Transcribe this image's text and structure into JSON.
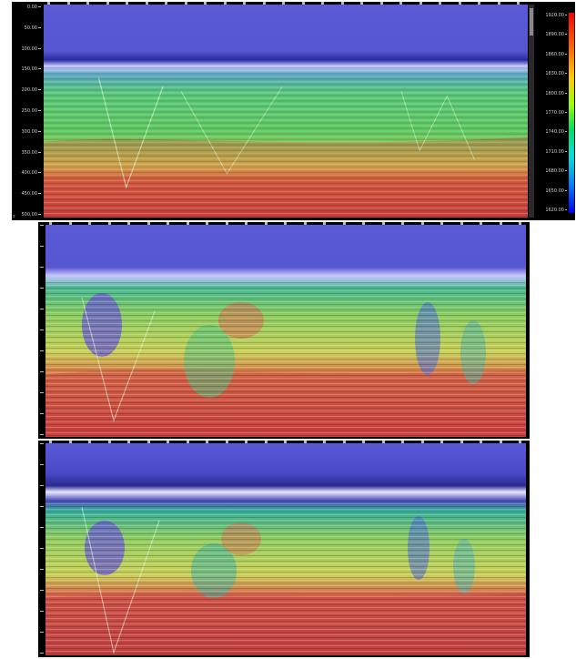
{
  "panels": [
    {
      "id": "top",
      "depth_ticks": [
        "0.00",
        "50.00",
        "100.00",
        "150.00",
        "200.00",
        "250.00",
        "300.00",
        "350.00",
        "400.00",
        "450.00",
        "500.00"
      ],
      "colorbar_ticks": [
        "1920.00",
        "1890.00",
        "1860.00",
        "1830.00",
        "1800.00",
        "1770.00",
        "1740.00",
        "1710.00",
        "1680.00",
        "1650.00",
        "1620.00"
      ],
      "corner_label": "z"
    },
    {
      "id": "middle"
    },
    {
      "id": "bottom"
    }
  ],
  "colors": {
    "water": "#5a5ad8",
    "seafloor": "#c8c8ff",
    "shallow": "#58c878",
    "mid": "#d8d850",
    "deep": "#c83c3c"
  }
}
